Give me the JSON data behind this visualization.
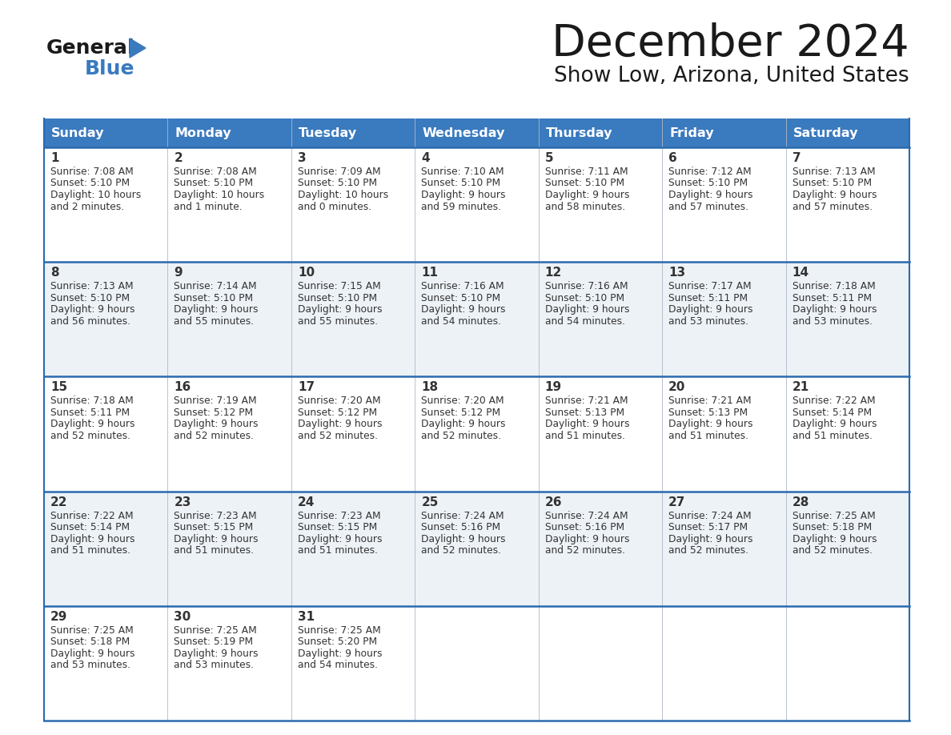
{
  "title": "December 2024",
  "subtitle": "Show Low, Arizona, United States",
  "header_color": "#3a7abf",
  "header_text_color": "#ffffff",
  "cell_bg_even": "#ffffff",
  "cell_bg_odd": "#edf2f7",
  "cell_bg_last": "#edf2f7",
  "border_color": "#2a6aaf",
  "text_color": "#333333",
  "days_of_week": [
    "Sunday",
    "Monday",
    "Tuesday",
    "Wednesday",
    "Thursday",
    "Friday",
    "Saturday"
  ],
  "calendar": [
    [
      {
        "day": 1,
        "sunrise": "7:08 AM",
        "sunset": "5:10 PM",
        "daylight_line1": "10 hours",
        "daylight_line2": "and 2 minutes."
      },
      {
        "day": 2,
        "sunrise": "7:08 AM",
        "sunset": "5:10 PM",
        "daylight_line1": "10 hours",
        "daylight_line2": "and 1 minute."
      },
      {
        "day": 3,
        "sunrise": "7:09 AM",
        "sunset": "5:10 PM",
        "daylight_line1": "10 hours",
        "daylight_line2": "and 0 minutes."
      },
      {
        "day": 4,
        "sunrise": "7:10 AM",
        "sunset": "5:10 PM",
        "daylight_line1": "9 hours",
        "daylight_line2": "and 59 minutes."
      },
      {
        "day": 5,
        "sunrise": "7:11 AM",
        "sunset": "5:10 PM",
        "daylight_line1": "9 hours",
        "daylight_line2": "and 58 minutes."
      },
      {
        "day": 6,
        "sunrise": "7:12 AM",
        "sunset": "5:10 PM",
        "daylight_line1": "9 hours",
        "daylight_line2": "and 57 minutes."
      },
      {
        "day": 7,
        "sunrise": "7:13 AM",
        "sunset": "5:10 PM",
        "daylight_line1": "9 hours",
        "daylight_line2": "and 57 minutes."
      }
    ],
    [
      {
        "day": 8,
        "sunrise": "7:13 AM",
        "sunset": "5:10 PM",
        "daylight_line1": "9 hours",
        "daylight_line2": "and 56 minutes."
      },
      {
        "day": 9,
        "sunrise": "7:14 AM",
        "sunset": "5:10 PM",
        "daylight_line1": "9 hours",
        "daylight_line2": "and 55 minutes."
      },
      {
        "day": 10,
        "sunrise": "7:15 AM",
        "sunset": "5:10 PM",
        "daylight_line1": "9 hours",
        "daylight_line2": "and 55 minutes."
      },
      {
        "day": 11,
        "sunrise": "7:16 AM",
        "sunset": "5:10 PM",
        "daylight_line1": "9 hours",
        "daylight_line2": "and 54 minutes."
      },
      {
        "day": 12,
        "sunrise": "7:16 AM",
        "sunset": "5:10 PM",
        "daylight_line1": "9 hours",
        "daylight_line2": "and 54 minutes."
      },
      {
        "day": 13,
        "sunrise": "7:17 AM",
        "sunset": "5:11 PM",
        "daylight_line1": "9 hours",
        "daylight_line2": "and 53 minutes."
      },
      {
        "day": 14,
        "sunrise": "7:18 AM",
        "sunset": "5:11 PM",
        "daylight_line1": "9 hours",
        "daylight_line2": "and 53 minutes."
      }
    ],
    [
      {
        "day": 15,
        "sunrise": "7:18 AM",
        "sunset": "5:11 PM",
        "daylight_line1": "9 hours",
        "daylight_line2": "and 52 minutes."
      },
      {
        "day": 16,
        "sunrise": "7:19 AM",
        "sunset": "5:12 PM",
        "daylight_line1": "9 hours",
        "daylight_line2": "and 52 minutes."
      },
      {
        "day": 17,
        "sunrise": "7:20 AM",
        "sunset": "5:12 PM",
        "daylight_line1": "9 hours",
        "daylight_line2": "and 52 minutes."
      },
      {
        "day": 18,
        "sunrise": "7:20 AM",
        "sunset": "5:12 PM",
        "daylight_line1": "9 hours",
        "daylight_line2": "and 52 minutes."
      },
      {
        "day": 19,
        "sunrise": "7:21 AM",
        "sunset": "5:13 PM",
        "daylight_line1": "9 hours",
        "daylight_line2": "and 51 minutes."
      },
      {
        "day": 20,
        "sunrise": "7:21 AM",
        "sunset": "5:13 PM",
        "daylight_line1": "9 hours",
        "daylight_line2": "and 51 minutes."
      },
      {
        "day": 21,
        "sunrise": "7:22 AM",
        "sunset": "5:14 PM",
        "daylight_line1": "9 hours",
        "daylight_line2": "and 51 minutes."
      }
    ],
    [
      {
        "day": 22,
        "sunrise": "7:22 AM",
        "sunset": "5:14 PM",
        "daylight_line1": "9 hours",
        "daylight_line2": "and 51 minutes."
      },
      {
        "day": 23,
        "sunrise": "7:23 AM",
        "sunset": "5:15 PM",
        "daylight_line1": "9 hours",
        "daylight_line2": "and 51 minutes."
      },
      {
        "day": 24,
        "sunrise": "7:23 AM",
        "sunset": "5:15 PM",
        "daylight_line1": "9 hours",
        "daylight_line2": "and 51 minutes."
      },
      {
        "day": 25,
        "sunrise": "7:24 AM",
        "sunset": "5:16 PM",
        "daylight_line1": "9 hours",
        "daylight_line2": "and 52 minutes."
      },
      {
        "day": 26,
        "sunrise": "7:24 AM",
        "sunset": "5:16 PM",
        "daylight_line1": "9 hours",
        "daylight_line2": "and 52 minutes."
      },
      {
        "day": 27,
        "sunrise": "7:24 AM",
        "sunset": "5:17 PM",
        "daylight_line1": "9 hours",
        "daylight_line2": "and 52 minutes."
      },
      {
        "day": 28,
        "sunrise": "7:25 AM",
        "sunset": "5:18 PM",
        "daylight_line1": "9 hours",
        "daylight_line2": "and 52 minutes."
      }
    ],
    [
      {
        "day": 29,
        "sunrise": "7:25 AM",
        "sunset": "5:18 PM",
        "daylight_line1": "9 hours",
        "daylight_line2": "and 53 minutes."
      },
      {
        "day": 30,
        "sunrise": "7:25 AM",
        "sunset": "5:19 PM",
        "daylight_line1": "9 hours",
        "daylight_line2": "and 53 minutes."
      },
      {
        "day": 31,
        "sunrise": "7:25 AM",
        "sunset": "5:20 PM",
        "daylight_line1": "9 hours",
        "daylight_line2": "and 54 minutes."
      },
      null,
      null,
      null,
      null
    ]
  ],
  "logo_text_general": "General",
  "logo_text_blue": "Blue",
  "logo_color_general": "#1a1a1a",
  "logo_color_blue": "#3a7abf",
  "logo_triangle_color": "#3a7abf",
  "fig_width": 11.88,
  "fig_height": 9.18,
  "dpi": 100
}
